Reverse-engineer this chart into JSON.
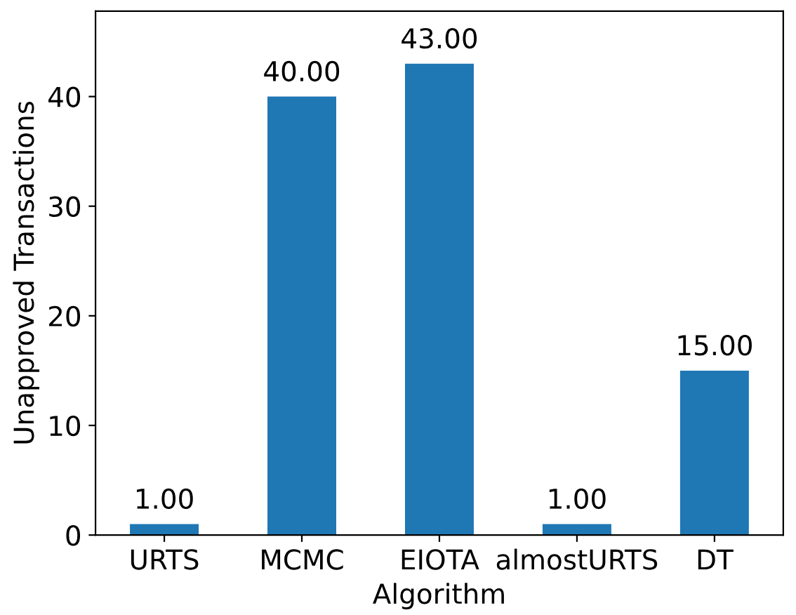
{
  "chart_data": {
    "type": "bar",
    "xlabel": "Algorithm",
    "ylabel": "Unapproved Transactions",
    "categories": [
      "URTS",
      "MCMC",
      "EIOTA",
      "almostURTS",
      "DT"
    ],
    "values": [
      1,
      40,
      43,
      1,
      15
    ],
    "value_labels": [
      "1.00",
      "40.00",
      "43.00",
      "1.00",
      "15.00"
    ],
    "color": "#1f77b4",
    "ylim": [
      0,
      47.8
    ],
    "yticks": [
      0,
      10,
      20,
      30,
      40
    ],
    "grid": false
  }
}
